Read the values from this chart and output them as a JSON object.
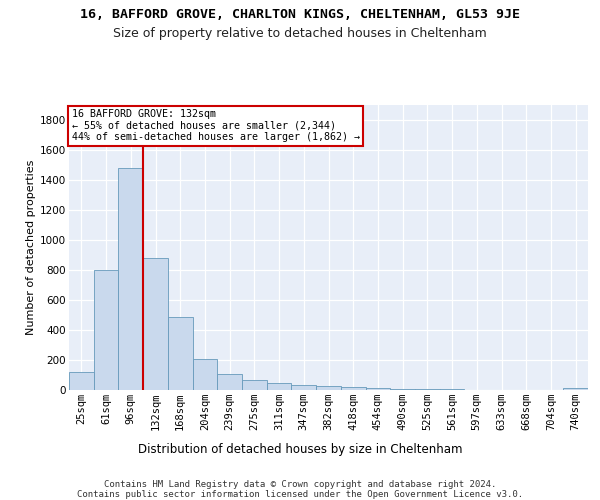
{
  "title": "16, BAFFORD GROVE, CHARLTON KINGS, CHELTENHAM, GL53 9JE",
  "subtitle": "Size of property relative to detached houses in Cheltenham",
  "xlabel": "Distribution of detached houses by size in Cheltenham",
  "ylabel": "Number of detached properties",
  "bar_color": "#c9d9ed",
  "bar_edge_color": "#6699bb",
  "background_color": "#e8eef8",
  "grid_color": "#ffffff",
  "categories": [
    "25sqm",
    "61sqm",
    "96sqm",
    "132sqm",
    "168sqm",
    "204sqm",
    "239sqm",
    "275sqm",
    "311sqm",
    "347sqm",
    "382sqm",
    "418sqm",
    "454sqm",
    "490sqm",
    "525sqm",
    "561sqm",
    "597sqm",
    "633sqm",
    "668sqm",
    "704sqm",
    "740sqm"
  ],
  "values": [
    120,
    800,
    1480,
    880,
    490,
    205,
    107,
    65,
    50,
    35,
    30,
    20,
    15,
    10,
    8,
    5,
    3,
    2,
    1,
    1,
    15
  ],
  "vline_color": "#cc0000",
  "vline_index": 3,
  "annotation_text": "16 BAFFORD GROVE: 132sqm\n← 55% of detached houses are smaller (2,344)\n44% of semi-detached houses are larger (1,862) →",
  "annotation_box_color": "#ffffff",
  "annotation_box_edge": "#cc0000",
  "ylim": [
    0,
    1900
  ],
  "yticks": [
    0,
    200,
    400,
    600,
    800,
    1000,
    1200,
    1400,
    1600,
    1800
  ],
  "footer": "Contains HM Land Registry data © Crown copyright and database right 2024.\nContains public sector information licensed under the Open Government Licence v3.0.",
  "title_fontsize": 9.5,
  "subtitle_fontsize": 9,
  "xlabel_fontsize": 8.5,
  "ylabel_fontsize": 8,
  "tick_fontsize": 7.5,
  "footer_fontsize": 6.5
}
